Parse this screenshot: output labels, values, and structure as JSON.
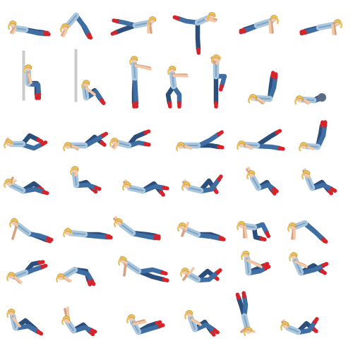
{
  "colors": {
    "hair": "#e8c15a",
    "hair_dark": "#b8902e",
    "skin": "#f2c9a8",
    "skin_dark": "#d9a27f",
    "top": "#a9c7de",
    "top_dark": "#7fa3c1",
    "jeans": "#3f6ea3",
    "jeans_dark": "#2b4f7a",
    "shoe": "#d6242a",
    "ball": "#5a6d82",
    "wall": "#cfcfcf"
  },
  "rows": [
    {
      "poses": [
        "lying-prone-arch",
        "downward-dog",
        "plank-leg-raise",
        "standing-arabesque",
        "high-plank",
        "high-plank-low"
      ]
    },
    {
      "poses": [
        "wall-sit",
        "wall-sit-floor",
        "standing-arms-forward",
        "squat-arms-forward",
        "standing-knee-raise",
        "supine-legs-up",
        "supine-ball"
      ]
    },
    {
      "poses": [
        "supine-bicycle",
        "supine-knees-bent",
        "supine-leg-kick",
        "supine-single-leg-raise",
        "supine-scissor",
        "supine-legs-vertical"
      ]
    },
    {
      "poses": [
        "crunch-left",
        "seated-knees-hug",
        "crunch-hands-head",
        "crunch-twist",
        "seated-v-sit",
        "seated-lean-back"
      ]
    },
    {
      "poses": [
        "side-plank-high",
        "side-lying-curl",
        "side-lying-hand-head",
        "side-forearm-plank",
        "quadruped-leg-lift",
        "pike-plank"
      ]
    },
    {
      "poses": [
        "reverse-crunch",
        "glute-bridge",
        "side-plank-leg-up",
        "side-lying-knee-tuck",
        "seated-reach-toes",
        "seated-knee-tuck"
      ]
    },
    {
      "poses": [
        "seated-rest",
        "v-up-reach",
        "boat-pose",
        "crunch-sit-up",
        "candlestick",
        "bicycle-crunch-floor"
      ]
    }
  ]
}
